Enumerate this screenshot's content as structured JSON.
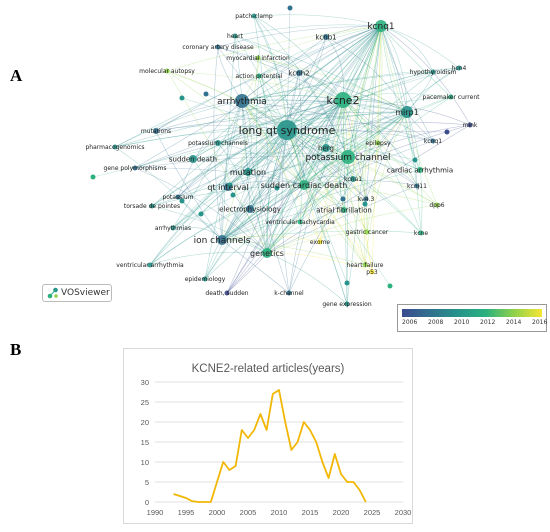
{
  "figure": {
    "panel_a_label": "A",
    "panel_b_label": "B"
  },
  "vosviewer": {
    "logo_text": "VOSviewer",
    "colorbar": {
      "ticks": [
        "2006",
        "2008",
        "2010",
        "2012",
        "2014",
        "2016"
      ],
      "colors": [
        "#3b4b8f",
        "#31708e",
        "#26948a",
        "#2bb07f",
        "#8fd14b",
        "#f6e535"
      ]
    },
    "keywords": [
      "long qt syndrome",
      "kcne2",
      "kcnq1",
      "arrhythmia",
      "potassium channel",
      "mirp1",
      "herg",
      "sudden cardiac death",
      "ion channels",
      "genetics",
      "qt interval",
      "mutation",
      "sudden death",
      "electrophysiology",
      "potassium channels",
      "mutations",
      "kcnh2",
      "kcnb1",
      "kcna1",
      "heart",
      "patch-clamp",
      "coronary artery disease",
      "molecular autopsy",
      "myocardial infarction",
      "action potential",
      "pharmacogenomics",
      "gene polymorphisms",
      "potassium",
      "torsade de pointes",
      "arrhythmias",
      "ventricular arrhythmia",
      "epidemiology",
      "death, sudden",
      "k-channel",
      "gene expression",
      "ventricular tachycardia",
      "atrial fibrillation",
      "exome",
      "gastric cancer",
      "heart failure",
      "p53",
      "kcne",
      "dpp6",
      "kv4.3",
      "kcnj11",
      "cardiac arrhythmia",
      "epilepsy",
      "hypothyroidism",
      "pacemaker current",
      "hcn4",
      "mink",
      "kcnq1"
    ]
  },
  "chart_data": {
    "type": "line",
    "title": "KCNE2-related articles(years)",
    "xlabel": "",
    "ylabel": "",
    "xlim": [
      1990,
      2030
    ],
    "ylim": [
      0,
      30
    ],
    "xticks": [
      1990,
      1995,
      2000,
      2005,
      2010,
      2015,
      2020,
      2025,
      2030
    ],
    "yticks": [
      0,
      5,
      10,
      15,
      20,
      25,
      30
    ],
    "grid": true,
    "line_color": "#f2b705",
    "series": [
      {
        "x": [
          1993,
          1994,
          1995,
          1996,
          1997,
          1998,
          1999,
          2000,
          2001,
          2002,
          2003,
          2004,
          2005,
          2006,
          2007,
          2008,
          2009,
          2010,
          2011,
          2012,
          2013,
          2014,
          2015,
          2016,
          2017,
          2018,
          2019,
          2020,
          2021,
          2022,
          2023,
          2024
        ],
        "y": [
          2,
          1.5,
          1,
          0.2,
          0,
          0,
          0,
          5,
          10,
          8,
          9,
          18,
          16,
          18,
          22,
          18,
          27,
          28,
          20,
          13,
          15,
          20,
          18,
          15,
          10,
          6,
          12,
          7,
          5,
          5,
          3,
          0
        ]
      }
    ]
  }
}
